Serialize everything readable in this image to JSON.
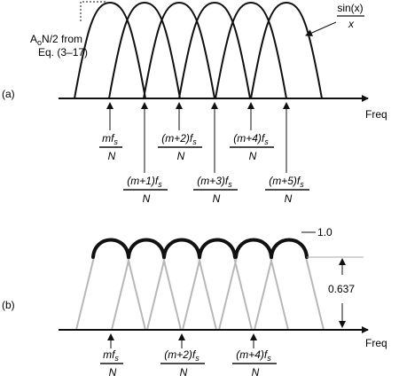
{
  "panel_a": {
    "label": "(a)",
    "freq_label": "Freq",
    "annotation_top": "A",
    "annotation_sub": "o",
    "annotation_tail": "N/2 from",
    "annotation_line2": "Eq. (3–17)",
    "sinc_num": "sin(x)",
    "sinc_den": "x",
    "upper_bins": [
      {
        "num": "mf",
        "sub": "s",
        "den": "N"
      },
      {
        "num": "(m+2)f",
        "sub": "s",
        "den": "N"
      },
      {
        "num": "(m+4)f",
        "sub": "s",
        "den": "N"
      }
    ],
    "lower_bins": [
      {
        "num": "(m+1)f",
        "sub": "s",
        "den": "N"
      },
      {
        "num": "(m+3)f",
        "sub": "s",
        "den": "N"
      },
      {
        "num": "(m+5)f",
        "sub": "s",
        "den": "N"
      }
    ]
  },
  "panel_b": {
    "label": "(b)",
    "freq_label": "Freq",
    "peak_label": "1.0",
    "ripple_label": "0.637",
    "bins": [
      {
        "num": "mf",
        "sub": "s",
        "den": "N"
      },
      {
        "num": "(m+2)f",
        "sub": "s",
        "den": "N"
      },
      {
        "num": "(m+4)f",
        "sub": "s",
        "den": "N"
      }
    ]
  },
  "colors": {
    "ink": "#111111",
    "lobe_gray": "#b8b8b8"
  }
}
